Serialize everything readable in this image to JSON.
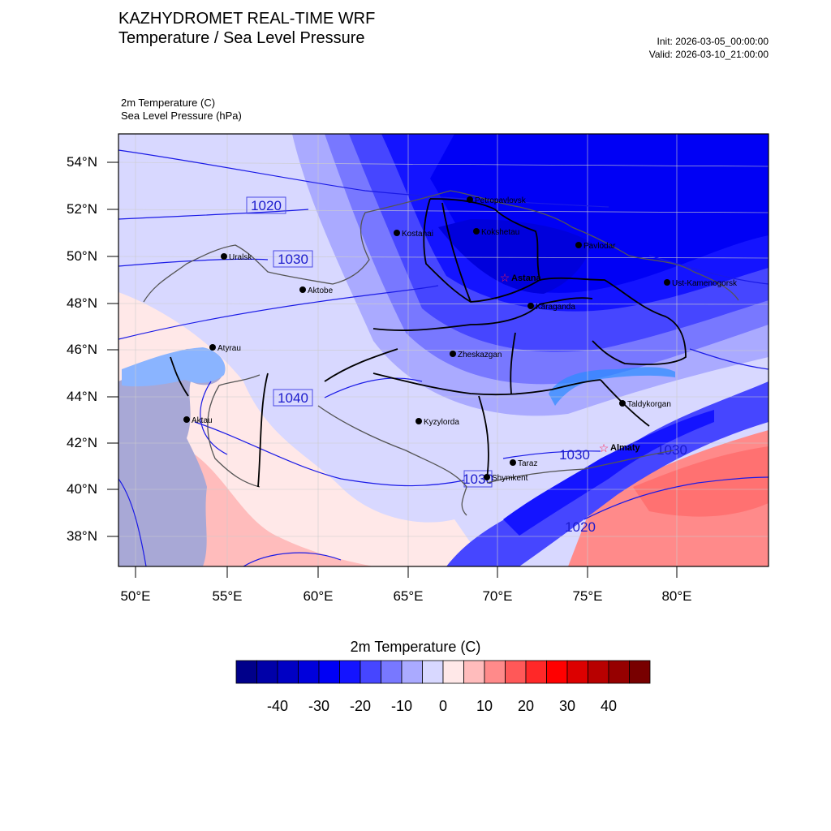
{
  "header": {
    "title_line1": "KAZHYDROMET REAL-TIME WRF",
    "title_line2": "Temperature / Sea Level Pressure",
    "init": "Init: 2026-03-05_00:00:00",
    "valid": "Valid: 2026-03-10_21:00:00",
    "var1": "2m Temperature   (C)",
    "var2": "Sea Level Pressure   (hPa)"
  },
  "axes": {
    "lat_labels": [
      "54°N",
      "52°N",
      "50°N",
      "48°N",
      "46°N",
      "44°N",
      "42°N",
      "40°N",
      "38°N"
    ],
    "lon_labels": [
      "50°E",
      "55°E",
      "60°E",
      "65°E",
      "70°E",
      "75°E",
      "80°E"
    ]
  },
  "isobar_labels": [
    "1020",
    "1030",
    "1040",
    "1030",
    "1030",
    "1030",
    "1020"
  ],
  "cities": [
    {
      "name": "Petropavlovsk",
      "capital": false
    },
    {
      "name": "Kostanai",
      "capital": false
    },
    {
      "name": "Kokshetau",
      "capital": false
    },
    {
      "name": "Pavlodar",
      "capital": false
    },
    {
      "name": "Uralsk",
      "capital": false
    },
    {
      "name": "Aktobe",
      "capital": false
    },
    {
      "name": "Astana",
      "capital": true
    },
    {
      "name": "Ust-Kamenogorsk",
      "capital": false
    },
    {
      "name": "Karaganda",
      "capital": false
    },
    {
      "name": "Atyrau",
      "capital": false
    },
    {
      "name": "Zheskazgan",
      "capital": false
    },
    {
      "name": "Taldykorgan",
      "capital": false
    },
    {
      "name": "Aktau",
      "capital": false
    },
    {
      "name": "Kyzylorda",
      "capital": false
    },
    {
      "name": "Almaty",
      "capital": true
    },
    {
      "name": "Taraz",
      "capital": false
    },
    {
      "name": "Shymkent",
      "capital": false
    }
  ],
  "colorbar": {
    "title": "2m Temperature  (C)",
    "labels": [
      "-40",
      "-30",
      "-20",
      "-10",
      "0",
      "10",
      "20",
      "30",
      "40"
    ],
    "colors": [
      "#00008a",
      "#0000a8",
      "#0000c4",
      "#0000dc",
      "#0000f5",
      "#1414ff",
      "#4646ff",
      "#7878ff",
      "#aaaaff",
      "#d8d8ff",
      "#ffe8e8",
      "#ffbcbc",
      "#ff8a8a",
      "#ff5858",
      "#ff2828",
      "#ff0000",
      "#dc0000",
      "#b80000",
      "#960000",
      "#780000"
    ]
  }
}
